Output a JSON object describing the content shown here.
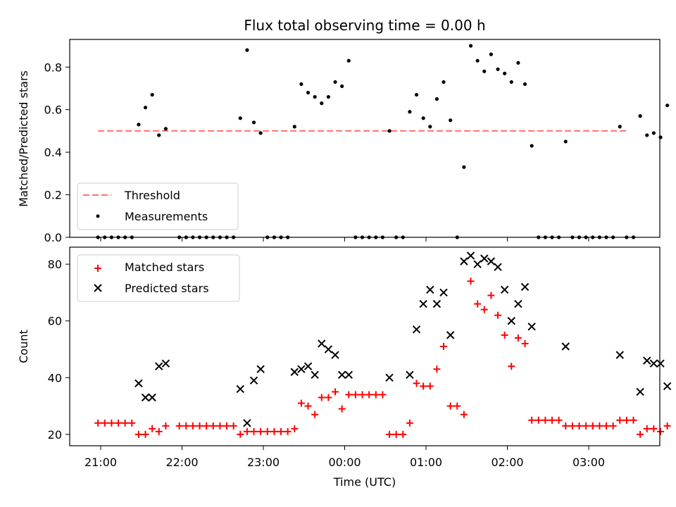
{
  "chart_data": [
    {
      "type": "scatter",
      "title": "Flux total observing time = 0.00 h",
      "xlabel": "",
      "ylabel": "Matched/Predicted stars",
      "ylim": [
        0,
        0.93
      ],
      "y_ticks": [
        0.0,
        0.2,
        0.4,
        0.6,
        0.8
      ],
      "y_tick_labels": [
        "0.0",
        "0.2",
        "0.4",
        "0.6",
        "0.8"
      ],
      "x_tick_labels_hidden": true,
      "grid": false,
      "legend_position": "lower-left",
      "threshold": {
        "name": "Threshold",
        "value": 0.5,
        "x_start": "20:58",
        "x_end": "03:28",
        "color": "#ff7070",
        "style": "dashed"
      },
      "series": [
        {
          "name": "Measurements",
          "color": "#000000",
          "marker": "dot",
          "points": [
            [
              "20:58",
              0.0
            ],
            [
              "21:03",
              0.0
            ],
            [
              "21:08",
              0.0
            ],
            [
              "21:13",
              0.0
            ],
            [
              "21:18",
              0.0
            ],
            [
              "21:23",
              0.0
            ],
            [
              "21:28",
              0.53
            ],
            [
              "21:33",
              0.61
            ],
            [
              "21:38",
              0.67
            ],
            [
              "21:43",
              0.48
            ],
            [
              "21:48",
              0.51
            ],
            [
              "21:58",
              0.0
            ],
            [
              "22:03",
              0.0
            ],
            [
              "22:08",
              0.0
            ],
            [
              "22:13",
              0.0
            ],
            [
              "22:18",
              0.0
            ],
            [
              "22:23",
              0.0
            ],
            [
              "22:28",
              0.0
            ],
            [
              "22:33",
              0.0
            ],
            [
              "22:38",
              0.0
            ],
            [
              "22:43",
              0.56
            ],
            [
              "22:48",
              0.88
            ],
            [
              "22:53",
              0.54
            ],
            [
              "22:58",
              0.49
            ],
            [
              "23:03",
              0.0
            ],
            [
              "23:08",
              0.0
            ],
            [
              "23:13",
              0.0
            ],
            [
              "23:18",
              0.0
            ],
            [
              "23:23",
              0.52
            ],
            [
              "23:28",
              0.72
            ],
            [
              "23:33",
              0.68
            ],
            [
              "23:38",
              0.66
            ],
            [
              "23:43",
              0.63
            ],
            [
              "23:48",
              0.66
            ],
            [
              "23:53",
              0.73
            ],
            [
              "23:58",
              0.71
            ],
            [
              "00:03",
              0.83
            ],
            [
              "00:08",
              0.0
            ],
            [
              "00:13",
              0.0
            ],
            [
              "00:18",
              0.0
            ],
            [
              "00:23",
              0.0
            ],
            [
              "00:28",
              0.0
            ],
            [
              "00:33",
              0.5
            ],
            [
              "00:38",
              0.0
            ],
            [
              "00:43",
              0.0
            ],
            [
              "00:48",
              0.59
            ],
            [
              "00:53",
              0.67
            ],
            [
              "00:58",
              0.56
            ],
            [
              "01:03",
              0.52
            ],
            [
              "01:08",
              0.65
            ],
            [
              "01:13",
              0.73
            ],
            [
              "01:18",
              0.55
            ],
            [
              "01:23",
              0.0
            ],
            [
              "01:28",
              0.33
            ],
            [
              "01:33",
              0.9
            ],
            [
              "01:38",
              0.83
            ],
            [
              "01:43",
              0.78
            ],
            [
              "01:48",
              0.86
            ],
            [
              "01:53",
              0.79
            ],
            [
              "01:58",
              0.77
            ],
            [
              "02:03",
              0.73
            ],
            [
              "02:08",
              0.82
            ],
            [
              "02:13",
              0.72
            ],
            [
              "02:18",
              0.43
            ],
            [
              "02:23",
              0.0
            ],
            [
              "02:28",
              0.0
            ],
            [
              "02:33",
              0.0
            ],
            [
              "02:38",
              0.0
            ],
            [
              "02:43",
              0.45
            ],
            [
              "02:48",
              0.0
            ],
            [
              "02:53",
              0.0
            ],
            [
              "02:58",
              0.0
            ],
            [
              "03:03",
              0.0
            ],
            [
              "03:08",
              0.0
            ],
            [
              "03:13",
              0.0
            ],
            [
              "03:18",
              0.0
            ],
            [
              "03:23",
              0.52
            ],
            [
              "03:28",
              0.0
            ],
            [
              "03:33",
              0.0
            ],
            [
              "03:38",
              0.57
            ],
            [
              "03:43",
              0.48
            ],
            [
              "03:48",
              0.49
            ],
            [
              "03:53",
              0.47
            ],
            [
              "03:58",
              0.62
            ]
          ]
        }
      ]
    },
    {
      "type": "scatter",
      "title": "",
      "xlabel": "Time (UTC)",
      "ylabel": "Count",
      "ylim": [
        16,
        86
      ],
      "y_ticks": [
        20,
        40,
        60,
        80
      ],
      "y_tick_labels": [
        "20",
        "40",
        "60",
        "80"
      ],
      "x_ticks": [
        "21:00",
        "22:00",
        "23:00",
        "00:00",
        "01:00",
        "02:00",
        "03:00"
      ],
      "x_tick_labels": [
        "21:00",
        "22:00",
        "23:00",
        "00:00",
        "01:00",
        "02:00",
        "03:00"
      ],
      "grid": false,
      "legend_position": "upper-left",
      "series": [
        {
          "name": "Matched stars",
          "color": "#ff0000",
          "marker": "plus",
          "points": [
            [
              "20:58",
              24
            ],
            [
              "21:03",
              24
            ],
            [
              "21:08",
              24
            ],
            [
              "21:13",
              24
            ],
            [
              "21:18",
              24
            ],
            [
              "21:23",
              24
            ],
            [
              "21:28",
              20
            ],
            [
              "21:33",
              20
            ],
            [
              "21:38",
              22
            ],
            [
              "21:43",
              21
            ],
            [
              "21:48",
              23
            ],
            [
              "21:58",
              23
            ],
            [
              "22:03",
              23
            ],
            [
              "22:08",
              23
            ],
            [
              "22:13",
              23
            ],
            [
              "22:18",
              23
            ],
            [
              "22:23",
              23
            ],
            [
              "22:28",
              23
            ],
            [
              "22:33",
              23
            ],
            [
              "22:38",
              23
            ],
            [
              "22:43",
              20
            ],
            [
              "22:48",
              21
            ],
            [
              "22:53",
              21
            ],
            [
              "22:58",
              21
            ],
            [
              "23:03",
              21
            ],
            [
              "23:08",
              21
            ],
            [
              "23:13",
              21
            ],
            [
              "23:18",
              21
            ],
            [
              "23:23",
              22
            ],
            [
              "23:28",
              31
            ],
            [
              "23:33",
              30
            ],
            [
              "23:38",
              27
            ],
            [
              "23:43",
              33
            ],
            [
              "23:48",
              33
            ],
            [
              "23:53",
              35
            ],
            [
              "23:58",
              29
            ],
            [
              "00:03",
              34
            ],
            [
              "00:08",
              34
            ],
            [
              "00:13",
              34
            ],
            [
              "00:18",
              34
            ],
            [
              "00:23",
              34
            ],
            [
              "00:28",
              34
            ],
            [
              "00:33",
              20
            ],
            [
              "00:38",
              20
            ],
            [
              "00:43",
              20
            ],
            [
              "00:48",
              24
            ],
            [
              "00:53",
              38
            ],
            [
              "00:58",
              37
            ],
            [
              "01:03",
              37
            ],
            [
              "01:08",
              43
            ],
            [
              "01:13",
              51
            ],
            [
              "01:18",
              30
            ],
            [
              "01:23",
              30
            ],
            [
              "01:28",
              27
            ],
            [
              "01:33",
              74
            ],
            [
              "01:38",
              66
            ],
            [
              "01:43",
              64
            ],
            [
              "01:48",
              69
            ],
            [
              "01:53",
              62
            ],
            [
              "01:58",
              55
            ],
            [
              "02:03",
              44
            ],
            [
              "02:08",
              54
            ],
            [
              "02:13",
              52
            ],
            [
              "02:18",
              25
            ],
            [
              "02:23",
              25
            ],
            [
              "02:28",
              25
            ],
            [
              "02:33",
              25
            ],
            [
              "02:38",
              25
            ],
            [
              "02:43",
              23
            ],
            [
              "02:48",
              23
            ],
            [
              "02:53",
              23
            ],
            [
              "02:58",
              23
            ],
            [
              "03:03",
              23
            ],
            [
              "03:08",
              23
            ],
            [
              "03:13",
              23
            ],
            [
              "03:18",
              23
            ],
            [
              "03:23",
              25
            ],
            [
              "03:28",
              25
            ],
            [
              "03:33",
              25
            ],
            [
              "03:38",
              20
            ],
            [
              "03:43",
              22
            ],
            [
              "03:48",
              22
            ],
            [
              "03:53",
              21
            ],
            [
              "03:58",
              23
            ]
          ]
        },
        {
          "name": "Predicted stars",
          "color": "#000000",
          "marker": "x",
          "points": [
            [
              "21:28",
              38
            ],
            [
              "21:33",
              33
            ],
            [
              "21:38",
              33
            ],
            [
              "21:43",
              44
            ],
            [
              "21:48",
              45
            ],
            [
              "22:43",
              36
            ],
            [
              "22:48",
              24
            ],
            [
              "22:53",
              39
            ],
            [
              "22:58",
              43
            ],
            [
              "23:23",
              42
            ],
            [
              "23:28",
              43
            ],
            [
              "23:33",
              44
            ],
            [
              "23:38",
              41
            ],
            [
              "23:43",
              52
            ],
            [
              "23:48",
              50
            ],
            [
              "23:53",
              48
            ],
            [
              "23:58",
              41
            ],
            [
              "00:03",
              41
            ],
            [
              "00:33",
              40
            ],
            [
              "00:48",
              41
            ],
            [
              "00:53",
              57
            ],
            [
              "00:58",
              66
            ],
            [
              "01:03",
              71
            ],
            [
              "01:08",
              66
            ],
            [
              "01:13",
              70
            ],
            [
              "01:18",
              55
            ],
            [
              "01:28",
              81
            ],
            [
              "01:33",
              83
            ],
            [
              "01:38",
              80
            ],
            [
              "01:43",
              82
            ],
            [
              "01:48",
              81
            ],
            [
              "01:53",
              79
            ],
            [
              "01:58",
              71
            ],
            [
              "02:03",
              60
            ],
            [
              "02:08",
              66
            ],
            [
              "02:13",
              72
            ],
            [
              "02:18",
              58
            ],
            [
              "02:43",
              51
            ],
            [
              "03:23",
              48
            ],
            [
              "03:38",
              35
            ],
            [
              "03:43",
              46
            ],
            [
              "03:48",
              45
            ],
            [
              "03:53",
              45
            ],
            [
              "03:58",
              37
            ]
          ]
        }
      ]
    }
  ]
}
